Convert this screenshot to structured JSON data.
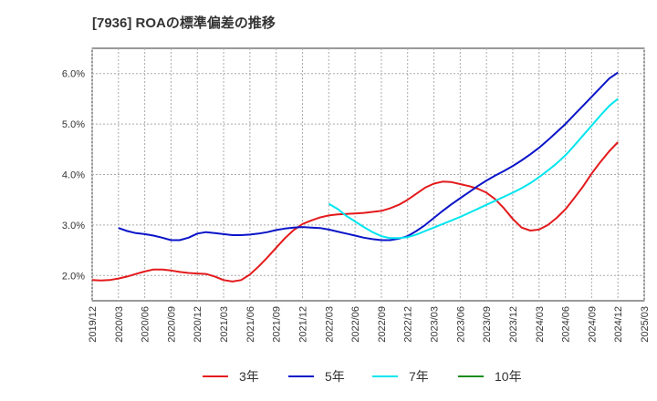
{
  "chart_data": {
    "type": "line",
    "title": "[7936]  ROAの標準偏差の推移",
    "xlabel": "",
    "ylabel": "",
    "ylim": [
      1.5,
      6.5
    ],
    "yticks": [
      2.0,
      3.0,
      4.0,
      5.0,
      6.0
    ],
    "ytick_labels": [
      "2.0%",
      "3.0%",
      "4.0%",
      "5.0%",
      "6.0%"
    ],
    "x_ticks": [
      "2019/12",
      "2020/03",
      "2020/06",
      "2020/09",
      "2020/12",
      "2021/03",
      "2021/06",
      "2021/09",
      "2021/12",
      "2022/03",
      "2022/06",
      "2022/09",
      "2022/12",
      "2023/03",
      "2023/06",
      "2023/09",
      "2023/12",
      "2024/03",
      "2024/06",
      "2024/09",
      "2024/12",
      "2025/03"
    ],
    "grid": true,
    "legend_position": "bottom",
    "series": [
      {
        "name": "3年",
        "color": "#e31a1c",
        "points": [
          [
            "2019/12",
            1.91
          ],
          [
            "2020/01",
            1.9
          ],
          [
            "2020/02",
            1.91
          ],
          [
            "2020/03",
            1.94
          ],
          [
            "2020/04",
            1.98
          ],
          [
            "2020/05",
            2.03
          ],
          [
            "2020/06",
            2.08
          ],
          [
            "2020/07",
            2.12
          ],
          [
            "2020/08",
            2.12
          ],
          [
            "2020/09",
            2.1
          ],
          [
            "2020/10",
            2.07
          ],
          [
            "2020/11",
            2.05
          ],
          [
            "2020/12",
            2.04
          ],
          [
            "2021/01",
            2.03
          ],
          [
            "2021/02",
            1.98
          ],
          [
            "2021/03",
            1.91
          ],
          [
            "2021/04",
            1.88
          ],
          [
            "2021/05",
            1.91
          ],
          [
            "2021/06",
            2.02
          ],
          [
            "2021/07",
            2.18
          ],
          [
            "2021/08",
            2.36
          ],
          [
            "2021/09",
            2.55
          ],
          [
            "2021/10",
            2.74
          ],
          [
            "2021/11",
            2.9
          ],
          [
            "2021/12",
            3.02
          ],
          [
            "2022/01",
            3.09
          ],
          [
            "2022/02",
            3.15
          ],
          [
            "2022/03",
            3.19
          ],
          [
            "2022/04",
            3.21
          ],
          [
            "2022/05",
            3.22
          ],
          [
            "2022/06",
            3.23
          ],
          [
            "2022/07",
            3.24
          ],
          [
            "2022/08",
            3.26
          ],
          [
            "2022/09",
            3.28
          ],
          [
            "2022/10",
            3.33
          ],
          [
            "2022/11",
            3.4
          ],
          [
            "2022/12",
            3.5
          ],
          [
            "2023/01",
            3.62
          ],
          [
            "2023/02",
            3.74
          ],
          [
            "2023/03",
            3.82
          ],
          [
            "2023/04",
            3.86
          ],
          [
            "2023/05",
            3.85
          ],
          [
            "2023/06",
            3.81
          ],
          [
            "2023/07",
            3.77
          ],
          [
            "2023/08",
            3.72
          ],
          [
            "2023/09",
            3.64
          ],
          [
            "2023/10",
            3.51
          ],
          [
            "2023/11",
            3.33
          ],
          [
            "2023/12",
            3.12
          ],
          [
            "2024/01",
            2.95
          ],
          [
            "2024/02",
            2.89
          ],
          [
            "2024/03",
            2.91
          ],
          [
            "2024/04",
            3.0
          ],
          [
            "2024/05",
            3.14
          ],
          [
            "2024/06",
            3.31
          ],
          [
            "2024/07",
            3.53
          ],
          [
            "2024/08",
            3.76
          ],
          [
            "2024/09",
            4.02
          ],
          [
            "2024/10",
            4.25
          ],
          [
            "2024/11",
            4.46
          ],
          [
            "2024/12",
            4.64
          ]
        ]
      },
      {
        "name": "5年",
        "color": "#0a14c8",
        "points": [
          [
            "2020/03",
            2.94
          ],
          [
            "2020/04",
            2.88
          ],
          [
            "2020/05",
            2.84
          ],
          [
            "2020/06",
            2.82
          ],
          [
            "2020/07",
            2.79
          ],
          [
            "2020/08",
            2.75
          ],
          [
            "2020/09",
            2.7
          ],
          [
            "2020/10",
            2.7
          ],
          [
            "2020/11",
            2.75
          ],
          [
            "2020/12",
            2.83
          ],
          [
            "2021/01",
            2.86
          ],
          [
            "2021/02",
            2.84
          ],
          [
            "2021/03",
            2.82
          ],
          [
            "2021/04",
            2.8
          ],
          [
            "2021/05",
            2.8
          ],
          [
            "2021/06",
            2.81
          ],
          [
            "2021/07",
            2.83
          ],
          [
            "2021/08",
            2.86
          ],
          [
            "2021/09",
            2.9
          ],
          [
            "2021/10",
            2.93
          ],
          [
            "2021/11",
            2.95
          ],
          [
            "2021/12",
            2.96
          ],
          [
            "2022/01",
            2.95
          ],
          [
            "2022/02",
            2.94
          ],
          [
            "2022/03",
            2.91
          ],
          [
            "2022/04",
            2.87
          ],
          [
            "2022/05",
            2.83
          ],
          [
            "2022/06",
            2.79
          ],
          [
            "2022/07",
            2.75
          ],
          [
            "2022/08",
            2.72
          ],
          [
            "2022/09",
            2.7
          ],
          [
            "2022/10",
            2.7
          ],
          [
            "2022/11",
            2.73
          ],
          [
            "2022/12",
            2.78
          ],
          [
            "2023/01",
            2.88
          ],
          [
            "2023/02",
            3.0
          ],
          [
            "2023/03",
            3.14
          ],
          [
            "2023/04",
            3.28
          ],
          [
            "2023/05",
            3.41
          ],
          [
            "2023/06",
            3.53
          ],
          [
            "2023/07",
            3.65
          ],
          [
            "2023/08",
            3.77
          ],
          [
            "2023/09",
            3.88
          ],
          [
            "2023/10",
            3.98
          ],
          [
            "2023/11",
            4.07
          ],
          [
            "2023/12",
            4.17
          ],
          [
            "2024/01",
            4.28
          ],
          [
            "2024/02",
            4.4
          ],
          [
            "2024/03",
            4.53
          ],
          [
            "2024/04",
            4.68
          ],
          [
            "2024/05",
            4.84
          ],
          [
            "2024/06",
            5.0
          ],
          [
            "2024/07",
            5.18
          ],
          [
            "2024/08",
            5.36
          ],
          [
            "2024/09",
            5.54
          ],
          [
            "2024/10",
            5.72
          ],
          [
            "2024/11",
            5.9
          ],
          [
            "2024/12",
            6.02
          ]
        ]
      },
      {
        "name": "7年",
        "color": "#00e5ee",
        "points": [
          [
            "2022/03",
            3.42
          ],
          [
            "2022/04",
            3.32
          ],
          [
            "2022/05",
            3.18
          ],
          [
            "2022/06",
            3.07
          ],
          [
            "2022/07",
            2.96
          ],
          [
            "2022/08",
            2.86
          ],
          [
            "2022/09",
            2.78
          ],
          [
            "2022/10",
            2.74
          ],
          [
            "2022/11",
            2.74
          ],
          [
            "2022/12",
            2.76
          ],
          [
            "2023/01",
            2.81
          ],
          [
            "2023/02",
            2.88
          ],
          [
            "2023/03",
            2.95
          ],
          [
            "2023/04",
            3.02
          ],
          [
            "2023/05",
            3.09
          ],
          [
            "2023/06",
            3.16
          ],
          [
            "2023/07",
            3.24
          ],
          [
            "2023/08",
            3.32
          ],
          [
            "2023/09",
            3.4
          ],
          [
            "2023/10",
            3.48
          ],
          [
            "2023/11",
            3.56
          ],
          [
            "2023/12",
            3.64
          ],
          [
            "2024/01",
            3.73
          ],
          [
            "2024/02",
            3.83
          ],
          [
            "2024/03",
            3.95
          ],
          [
            "2024/04",
            4.08
          ],
          [
            "2024/05",
            4.22
          ],
          [
            "2024/06",
            4.38
          ],
          [
            "2024/07",
            4.57
          ],
          [
            "2024/08",
            4.77
          ],
          [
            "2024/09",
            4.97
          ],
          [
            "2024/10",
            5.17
          ],
          [
            "2024/11",
            5.36
          ],
          [
            "2024/12",
            5.5
          ]
        ]
      },
      {
        "name": "10年",
        "color": "#1a8c1a",
        "points": []
      }
    ]
  }
}
